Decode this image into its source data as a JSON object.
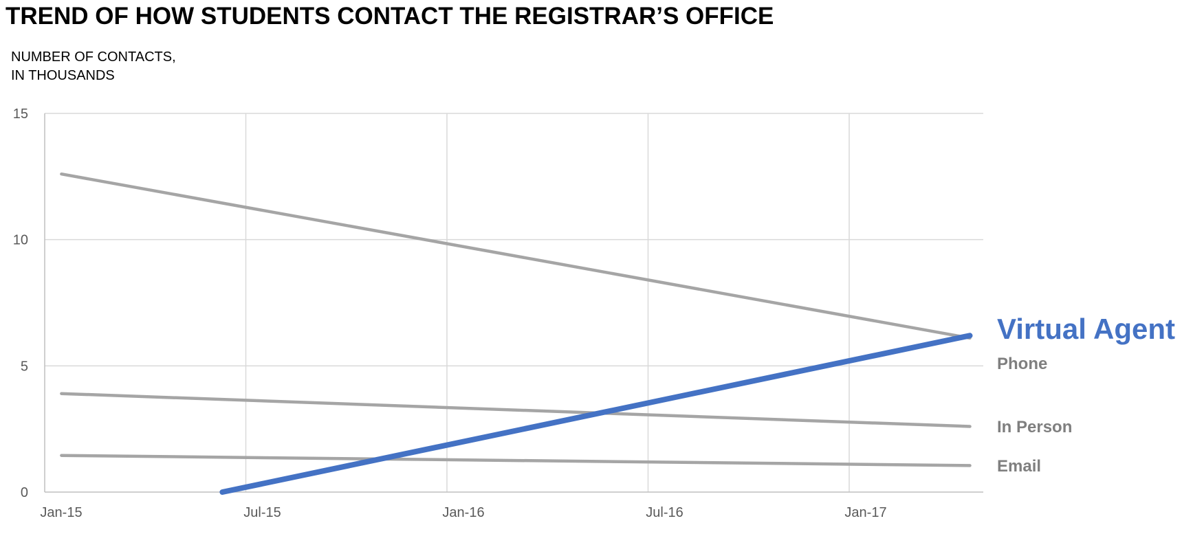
{
  "chart_data": {
    "type": "line",
    "title": "TREND OF HOW STUDENTS CONTACT THE REGISTRAR’S OFFICE",
    "ylabel_lines": [
      "NUMBER OF CONTACTS,",
      "IN THOUSANDS"
    ],
    "xlabel": "",
    "x_ticks": [
      "Jan-15",
      "Jul-15",
      "Jan-16",
      "Jul-16",
      "Jan-17"
    ],
    "x_tick_values": [
      0,
      6,
      12,
      18,
      24
    ],
    "xlim": [
      0,
      28
    ],
    "y_ticks": [
      "0",
      "5",
      "10",
      "15"
    ],
    "ylim": [
      0,
      15
    ],
    "grid": true,
    "legend": "direct-labels-right",
    "series": [
      {
        "name": "Virtual Agent",
        "color": "#4472C4",
        "emphasis": true,
        "points": [
          [
            5.3,
            0.0
          ],
          [
            27.6,
            6.2
          ]
        ]
      },
      {
        "name": "Phone",
        "color": "#A5A5A5",
        "emphasis": false,
        "points": [
          [
            0.5,
            12.6
          ],
          [
            27.6,
            6.1
          ]
        ]
      },
      {
        "name": "In Person",
        "color": "#A5A5A5",
        "emphasis": false,
        "points": [
          [
            0.5,
            3.9
          ],
          [
            27.6,
            2.6
          ]
        ]
      },
      {
        "name": "Email",
        "color": "#A5A5A5",
        "emphasis": false,
        "points": [
          [
            0.5,
            1.45
          ],
          [
            27.6,
            1.05
          ]
        ]
      }
    ]
  }
}
